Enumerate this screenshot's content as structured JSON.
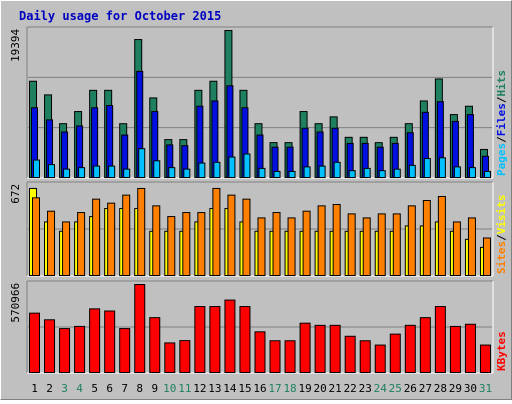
{
  "title": "Daily usage for October 2015",
  "colors": {
    "background": "#c0c0c0",
    "title": "#0000c0",
    "hits": "#1e8060",
    "files": "#0010e0",
    "pages": "#00c0ff",
    "visits": "#ffff00",
    "sites": "#ff8000",
    "kbytes": "#ff0000",
    "weekend_label": "#1e8060",
    "weekday_label": "#000000"
  },
  "chart_data": [
    {
      "type": "bar",
      "name": "hits-files-pages",
      "categories": [
        "1",
        "2",
        "3",
        "4",
        "5",
        "6",
        "7",
        "8",
        "9",
        "10",
        "11",
        "12",
        "13",
        "14",
        "15",
        "16",
        "17",
        "18",
        "19",
        "20",
        "21",
        "22",
        "23",
        "24",
        "25",
        "26",
        "27",
        "28",
        "29",
        "30",
        "31"
      ],
      "max_label": "19394",
      "ylim": [
        0,
        19394
      ],
      "right_labels": [
        "Pages",
        "/",
        "Files",
        "/",
        "Hits"
      ],
      "series": [
        {
          "name": "Hits",
          "color": "#1e8060",
          "values": [
            12700,
            10900,
            7100,
            8700,
            11500,
            11500,
            7100,
            18200,
            10500,
            5000,
            5000,
            11500,
            12700,
            19394,
            11500,
            7100,
            4600,
            4600,
            8700,
            7100,
            8000,
            5300,
            5300,
            4600,
            5300,
            7100,
            10100,
            13000,
            8300,
            9400,
            3700
          ]
        },
        {
          "name": "Files",
          "color": "#0010e0",
          "values": [
            9200,
            7600,
            6000,
            6800,
            9200,
            9500,
            5600,
            14000,
            8700,
            4300,
            4200,
            9400,
            10100,
            12100,
            9200,
            5600,
            4000,
            4000,
            6500,
            6000,
            6500,
            4500,
            4500,
            4000,
            4500,
            5900,
            8600,
            10000,
            7400,
            8300,
            2800
          ]
        },
        {
          "name": "Pages",
          "color": "#00c0ff",
          "values": [
            2300,
            1700,
            1100,
            1300,
            1500,
            1500,
            1100,
            3800,
            2200,
            1300,
            1100,
            1900,
            2000,
            2700,
            3100,
            1200,
            800,
            800,
            1400,
            1500,
            2000,
            900,
            1200,
            900,
            1100,
            1600,
            2500,
            2600,
            1400,
            1300,
            800
          ]
        }
      ]
    },
    {
      "type": "bar",
      "name": "sites-visits",
      "categories": [
        "1",
        "2",
        "3",
        "4",
        "5",
        "6",
        "7",
        "8",
        "9",
        "10",
        "11",
        "12",
        "13",
        "14",
        "15",
        "16",
        "17",
        "18",
        "19",
        "20",
        "21",
        "22",
        "23",
        "24",
        "25",
        "26",
        "27",
        "28",
        "29",
        "30",
        "31"
      ],
      "max_label": "672",
      "ylim": [
        0,
        672
      ],
      "right_labels": [
        "Sites",
        "/",
        "Visits"
      ],
      "series": [
        {
          "name": "Visits",
          "color": "#ffff00",
          "values": [
            650,
            400,
            330,
            400,
            440,
            500,
            500,
            500,
            330,
            330,
            330,
            400,
            500,
            500,
            400,
            330,
            330,
            330,
            330,
            330,
            330,
            330,
            330,
            330,
            330,
            370,
            370,
            400,
            330,
            270,
            210
          ]
        },
        {
          "name": "Sites",
          "color": "#ff8000",
          "values": [
            580,
            480,
            400,
            470,
            570,
            540,
            600,
            650,
            520,
            440,
            470,
            470,
            650,
            600,
            570,
            430,
            470,
            430,
            480,
            520,
            530,
            460,
            430,
            460,
            460,
            520,
            560,
            590,
            400,
            430,
            280
          ]
        }
      ]
    },
    {
      "type": "bar",
      "name": "kbytes",
      "categories": [
        "1",
        "2",
        "3",
        "4",
        "5",
        "6",
        "7",
        "8",
        "9",
        "10",
        "11",
        "12",
        "13",
        "14",
        "15",
        "16",
        "17",
        "18",
        "19",
        "20",
        "21",
        "22",
        "23",
        "24",
        "25",
        "26",
        "27",
        "28",
        "29",
        "30",
        "31"
      ],
      "max_label": "570966",
      "ylim": [
        0,
        570966
      ],
      "right_labels": [
        "KBytes"
      ],
      "series": [
        {
          "name": "KBytes",
          "color": "#ff0000",
          "values": [
            385000,
            342000,
            285000,
            299000,
            413000,
            399000,
            285000,
            570966,
            356000,
            192000,
            207000,
            428000,
            428000,
            470000,
            428000,
            264000,
            206000,
            206000,
            320000,
            306000,
            306000,
            235000,
            206000,
            178000,
            249000,
            306000,
            356000,
            428000,
            299000,
            313000,
            178000
          ]
        }
      ]
    }
  ],
  "x_labels": [
    {
      "day": "1",
      "weekend": false
    },
    {
      "day": "2",
      "weekend": false
    },
    {
      "day": "3",
      "weekend": true
    },
    {
      "day": "4",
      "weekend": true
    },
    {
      "day": "5",
      "weekend": false
    },
    {
      "day": "6",
      "weekend": false
    },
    {
      "day": "7",
      "weekend": false
    },
    {
      "day": "8",
      "weekend": false
    },
    {
      "day": "9",
      "weekend": false
    },
    {
      "day": "10",
      "weekend": true
    },
    {
      "day": "11",
      "weekend": true
    },
    {
      "day": "12",
      "weekend": false
    },
    {
      "day": "13",
      "weekend": false
    },
    {
      "day": "14",
      "weekend": false
    },
    {
      "day": "15",
      "weekend": false
    },
    {
      "day": "16",
      "weekend": false
    },
    {
      "day": "17",
      "weekend": true
    },
    {
      "day": "18",
      "weekend": true
    },
    {
      "day": "19",
      "weekend": false
    },
    {
      "day": "20",
      "weekend": false
    },
    {
      "day": "21",
      "weekend": false
    },
    {
      "day": "22",
      "weekend": false
    },
    {
      "day": "23",
      "weekend": false
    },
    {
      "day": "24",
      "weekend": true
    },
    {
      "day": "25",
      "weekend": true
    },
    {
      "day": "26",
      "weekend": false
    },
    {
      "day": "27",
      "weekend": false
    },
    {
      "day": "28",
      "weekend": false
    },
    {
      "day": "29",
      "weekend": false
    },
    {
      "day": "30",
      "weekend": false
    },
    {
      "day": "31",
      "weekend": true
    }
  ]
}
